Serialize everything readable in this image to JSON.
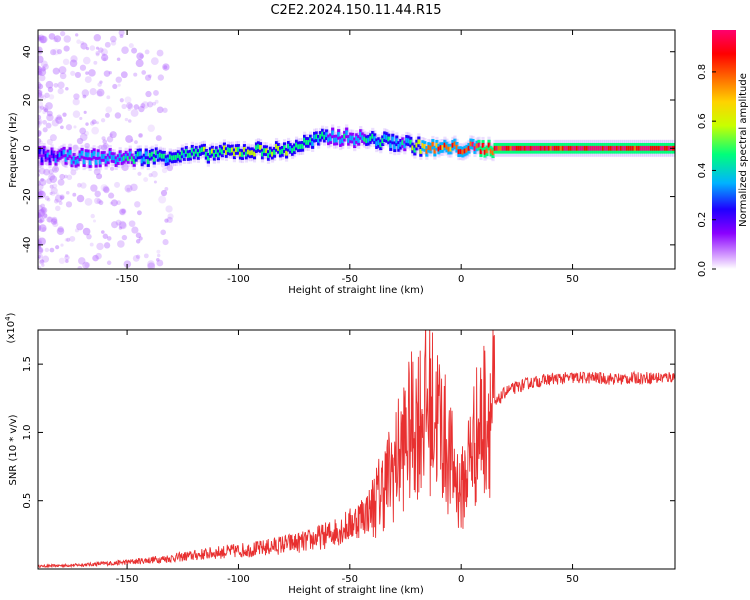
{
  "title": "C2E2.2024.150.11.44.R15",
  "chart_data": [
    {
      "type": "heatmap",
      "xlabel": "Height of straight line (km)",
      "ylabel": "Frequency (Hz)",
      "xlim": [
        -190,
        96
      ],
      "ylim": [
        -50,
        49
      ],
      "xticks": [
        -150,
        -100,
        -50,
        0,
        50
      ],
      "yticks": [
        -40,
        -20,
        0,
        20,
        40
      ],
      "colorbar": {
        "label": "Normalized spectral amplitude",
        "range": [
          0,
          0.97
        ],
        "ticks": [
          0.0,
          0.2,
          0.4,
          0.6,
          0.8
        ],
        "colors": [
          "#ffffff",
          "#8a00ff",
          "#1f00ff",
          "#00b3ff",
          "#00ff7a",
          "#c8ff00",
          "#ffd200",
          "#ff6a00",
          "#ff0000",
          "#ff006e"
        ]
      },
      "ridge": [
        {
          "x": -190,
          "freq": -3,
          "amp": 0.25
        },
        {
          "x": -170,
          "freq": -4,
          "amp": 0.3
        },
        {
          "x": -150,
          "freq": -4,
          "amp": 0.35
        },
        {
          "x": -130,
          "freq": -3,
          "amp": 0.4
        },
        {
          "x": -110,
          "freq": -2,
          "amp": 0.45
        },
        {
          "x": -95,
          "freq": -1,
          "amp": 0.5
        },
        {
          "x": -80,
          "freq": -1,
          "amp": 0.45
        },
        {
          "x": -70,
          "freq": 2,
          "amp": 0.4
        },
        {
          "x": -58,
          "freq": 5,
          "amp": 0.35
        },
        {
          "x": -45,
          "freq": 4,
          "amp": 0.35
        },
        {
          "x": -35,
          "freq": 3,
          "amp": 0.4
        },
        {
          "x": -25,
          "freq": 2,
          "amp": 0.35
        },
        {
          "x": -15,
          "freq": 0,
          "amp": 0.7
        },
        {
          "x": 0,
          "freq": 0,
          "amp": 0.8
        },
        {
          "x": 20,
          "freq": 0,
          "amp": 0.9
        },
        {
          "x": 60,
          "freq": 0,
          "amp": 0.95
        },
        {
          "x": 96,
          "freq": 0,
          "amp": 0.9
        }
      ]
    },
    {
      "type": "line",
      "xlabel": "Height of straight line (km)",
      "ylabel": "SNR (10 * v/v)",
      "y_multiplier_label": "(x10",
      "y_multiplier_exp": "4",
      "xlim": [
        -190,
        96
      ],
      "ylim": [
        0,
        17500
      ],
      "xticks": [
        -150,
        -100,
        -50,
        0,
        50
      ],
      "yticks": [
        5000,
        10000,
        15000
      ],
      "ytick_labels": [
        "0.5",
        "1.0",
        "1.5"
      ],
      "color": "#e83030",
      "x": [
        -190,
        -170,
        -150,
        -130,
        -110,
        -90,
        -80,
        -70,
        -60,
        -50,
        -40,
        -35,
        -30,
        -25,
        -20,
        -15,
        -10,
        -5,
        0,
        5,
        10,
        15,
        20,
        25,
        30,
        40,
        50,
        60,
        70,
        80,
        90,
        96
      ],
      "y": [
        200,
        300,
        500,
        800,
        1200,
        1500,
        1800,
        2000,
        2500,
        3200,
        4500,
        6000,
        7500,
        9500,
        11000,
        12000,
        11000,
        8000,
        5500,
        9000,
        11000,
        12000,
        13000,
        13300,
        13600,
        13900,
        14000,
        14000,
        13900,
        14000,
        14000,
        14100
      ]
    }
  ]
}
